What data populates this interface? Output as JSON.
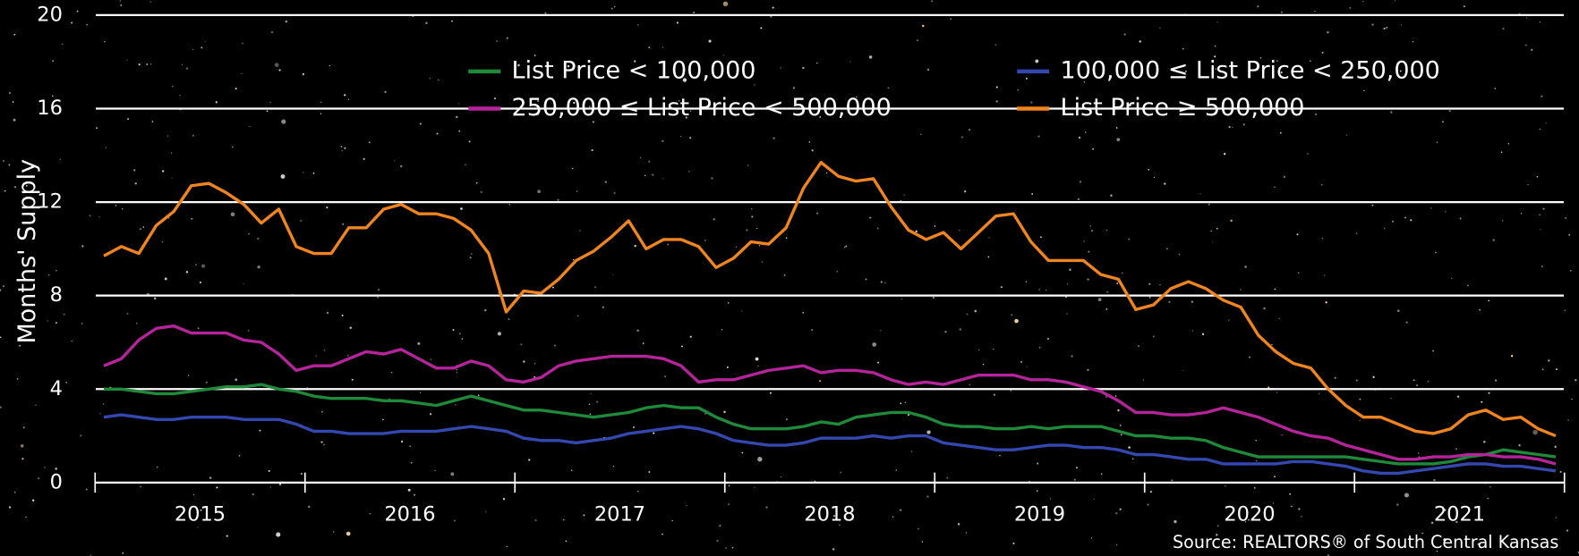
{
  "chart_data": {
    "type": "line",
    "y_label": "Months' Supply",
    "source": "Source: REALTORS® of South Central Kansas",
    "categories": [
      null,
      null,
      null,
      null,
      null,
      null,
      "2015",
      null,
      null,
      null,
      null,
      null,
      null,
      null,
      null,
      null,
      null,
      null,
      "2016",
      null,
      null,
      null,
      null,
      null,
      null,
      null,
      null,
      null,
      null,
      null,
      "2017",
      null,
      null,
      null,
      null,
      null,
      null,
      null,
      null,
      null,
      null,
      null,
      "2018",
      null,
      null,
      null,
      null,
      null,
      null,
      null,
      null,
      null,
      null,
      null,
      "2019",
      null,
      null,
      null,
      null,
      null,
      null,
      null,
      null,
      null,
      null,
      null,
      "2020",
      null,
      null,
      null,
      null,
      null,
      null,
      null,
      null,
      null,
      null,
      null,
      "2021",
      null,
      null,
      null,
      null,
      null
    ],
    "ylim": [
      0,
      20
    ],
    "yticks": [
      0,
      4,
      8,
      12,
      16,
      20
    ],
    "grid": true,
    "series": [
      {
        "name": "List Price < 100,000",
        "color": "#1e8a3a",
        "values": [
          4.0,
          4.0,
          3.9,
          3.8,
          3.8,
          3.9,
          4.0,
          4.1,
          4.1,
          4.2,
          4.0,
          3.9,
          3.7,
          3.6,
          3.6,
          3.6,
          3.5,
          3.5,
          3.4,
          3.3,
          3.5,
          3.7,
          3.5,
          3.3,
          3.1,
          3.1,
          3.0,
          2.9,
          2.8,
          2.9,
          3.0,
          3.2,
          3.3,
          3.2,
          3.2,
          2.8,
          2.5,
          2.3,
          2.3,
          2.3,
          2.4,
          2.6,
          2.5,
          2.8,
          2.9,
          3.0,
          3.0,
          2.8,
          2.5,
          2.4,
          2.4,
          2.3,
          2.3,
          2.4,
          2.3,
          2.4,
          2.4,
          2.4,
          2.2,
          2.0,
          2.0,
          1.9,
          1.9,
          1.8,
          1.5,
          1.3,
          1.1,
          1.1,
          1.1,
          1.1,
          1.1,
          1.1,
          1.0,
          0.9,
          0.8,
          0.8,
          0.8,
          0.9,
          1.1,
          1.2,
          1.4,
          1.3,
          1.2,
          1.1
        ]
      },
      {
        "name": "100,000 ≤ List Price < 250,000",
        "color": "#3448b0",
        "values": [
          2.8,
          2.9,
          2.8,
          2.7,
          2.7,
          2.8,
          2.8,
          2.8,
          2.7,
          2.7,
          2.7,
          2.5,
          2.2,
          2.2,
          2.1,
          2.1,
          2.1,
          2.2,
          2.2,
          2.2,
          2.3,
          2.4,
          2.3,
          2.2,
          1.9,
          1.8,
          1.8,
          1.7,
          1.8,
          1.9,
          2.1,
          2.2,
          2.3,
          2.4,
          2.3,
          2.1,
          1.8,
          1.7,
          1.6,
          1.6,
          1.7,
          1.9,
          1.9,
          1.9,
          2.0,
          1.9,
          2.0,
          2.0,
          1.7,
          1.6,
          1.5,
          1.4,
          1.4,
          1.5,
          1.6,
          1.6,
          1.5,
          1.5,
          1.4,
          1.2,
          1.2,
          1.1,
          1.0,
          1.0,
          0.8,
          0.8,
          0.8,
          0.8,
          0.9,
          0.9,
          0.8,
          0.7,
          0.5,
          0.4,
          0.4,
          0.5,
          0.6,
          0.7,
          0.8,
          0.8,
          0.7,
          0.7,
          0.6,
          0.5
        ]
      },
      {
        "name": "250,000 ≤ List Price < 500,000",
        "color": "#b5249a",
        "values": [
          5.0,
          5.3,
          6.1,
          6.6,
          6.7,
          6.4,
          6.4,
          6.4,
          6.1,
          6.0,
          5.5,
          4.8,
          5.0,
          5.0,
          5.3,
          5.6,
          5.5,
          5.7,
          5.3,
          4.9,
          4.9,
          5.2,
          5.0,
          4.4,
          4.3,
          4.5,
          5.0,
          5.2,
          5.3,
          5.4,
          5.4,
          5.4,
          5.3,
          5.0,
          4.3,
          4.4,
          4.4,
          4.6,
          4.8,
          4.9,
          5.0,
          4.7,
          4.8,
          4.8,
          4.7,
          4.4,
          4.2,
          4.3,
          4.2,
          4.4,
          4.6,
          4.6,
          4.6,
          4.4,
          4.4,
          4.3,
          4.1,
          3.9,
          3.5,
          3.0,
          3.0,
          2.9,
          2.9,
          3.0,
          3.2,
          3.0,
          2.8,
          2.5,
          2.2,
          2.0,
          1.9,
          1.6,
          1.4,
          1.2,
          1.0,
          1.0,
          1.1,
          1.1,
          1.2,
          1.2,
          1.1,
          1.1,
          1.0,
          0.8
        ]
      },
      {
        "name": "List Price ≥ 500,000",
        "color": "#f0841e",
        "values": [
          9.7,
          10.1,
          9.8,
          11.0,
          11.6,
          12.7,
          12.8,
          12.4,
          11.9,
          11.1,
          11.7,
          10.1,
          9.8,
          9.8,
          10.9,
          10.9,
          11.7,
          11.9,
          11.5,
          11.5,
          11.3,
          10.8,
          9.8,
          7.3,
          8.2,
          8.1,
          8.7,
          9.5,
          9.9,
          10.5,
          11.2,
          10.0,
          10.4,
          10.4,
          10.1,
          9.2,
          9.6,
          10.3,
          10.2,
          10.9,
          12.6,
          13.7,
          13.1,
          12.9,
          13.0,
          11.8,
          10.8,
          10.4,
          10.7,
          10.0,
          10.7,
          11.4,
          11.5,
          10.3,
          9.5,
          9.5,
          9.5,
          8.9,
          8.7,
          7.4,
          7.6,
          8.3,
          8.6,
          8.3,
          7.8,
          7.5,
          6.3,
          5.6,
          5.1,
          4.9,
          4.0,
          3.3,
          2.8,
          2.8,
          2.5,
          2.2,
          2.1,
          2.3,
          2.9,
          3.1,
          2.7,
          2.8,
          2.3,
          2.0
        ]
      }
    ]
  }
}
